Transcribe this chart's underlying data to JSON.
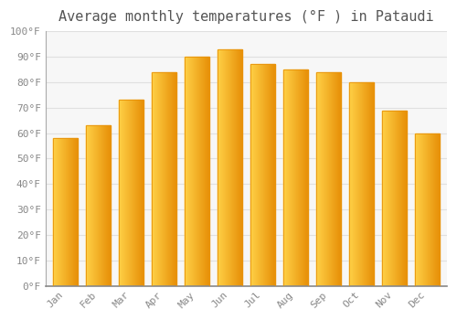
{
  "months": [
    "Jan",
    "Feb",
    "Mar",
    "Apr",
    "May",
    "Jun",
    "Jul",
    "Aug",
    "Sep",
    "Oct",
    "Nov",
    "Dec"
  ],
  "values": [
    58,
    63,
    73,
    84,
    90,
    93,
    87,
    85,
    84,
    80,
    69,
    60
  ],
  "bar_color_main": "#F5A623",
  "bar_color_light": "#FFD147",
  "bar_color_dark": "#E8920A",
  "title": "Average monthly temperatures (°F ) in Pataudi",
  "ylim": [
    0,
    100
  ],
  "ytick_step": 10,
  "background_color": "#FFFFFF",
  "plot_bg_color": "#F7F7F7",
  "grid_color": "#E0E0E0",
  "title_fontsize": 11,
  "tick_fontsize": 8,
  "tick_color": "#888888",
  "bar_width": 0.75
}
